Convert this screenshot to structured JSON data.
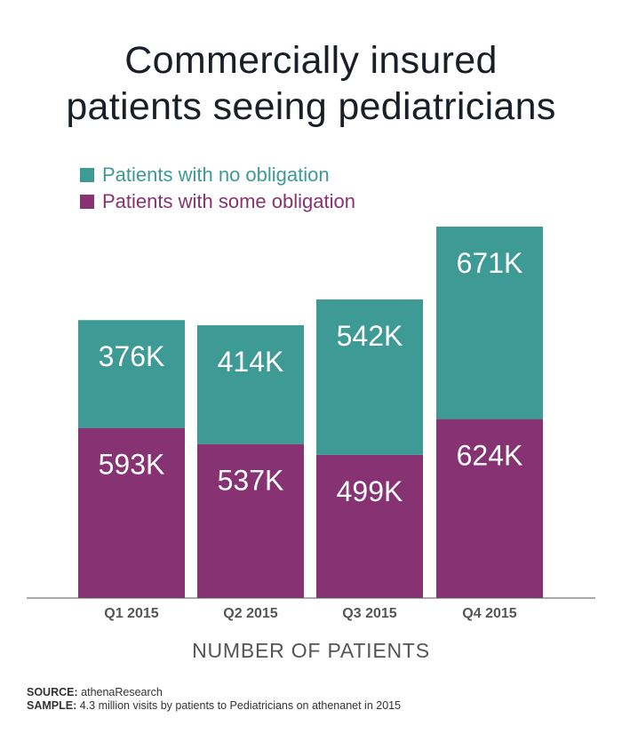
{
  "title_lines": [
    "Commercially insured",
    "patients seeing pediatricians"
  ],
  "legend": [
    {
      "label": "Patients with no obligation",
      "color": "#3e9a95"
    },
    {
      "label": "Patients with some obligation",
      "color": "#863273"
    }
  ],
  "xlabel": "NUMBER OF PATIENTS",
  "source": {
    "label": "SOURCE:",
    "text": "athenaResearch"
  },
  "sample": {
    "label": "SAMPLE:",
    "text": "4.3 million visits by patients to Pediatricians on athenanet in 2015"
  },
  "chart_data": {
    "type": "bar",
    "stacked": true,
    "categories": [
      "Q1 2015",
      "Q2 2015",
      "Q3 2015",
      "Q4 2015"
    ],
    "series": [
      {
        "name": "Patients with some obligation",
        "values": [
          593,
          537,
          499,
          624
        ],
        "labels": [
          "593K",
          "537K",
          "499K",
          "624K"
        ],
        "color": "#863273"
      },
      {
        "name": "Patients with no obligation",
        "values": [
          376,
          414,
          542,
          671
        ],
        "labels": [
          "376K",
          "414K",
          "542K",
          "671K"
        ],
        "color": "#3e9a95"
      }
    ],
    "unit": "K",
    "xlabel": "NUMBER OF PATIENTS",
    "ylabel": "",
    "grid": false,
    "legend_position": "top-left"
  }
}
